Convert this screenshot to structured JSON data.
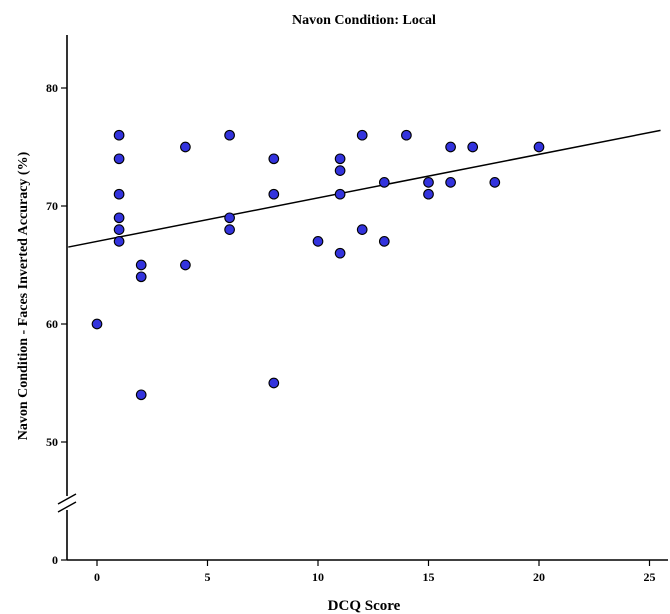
{
  "chart_data": {
    "type": "scatter",
    "title": "Navon Condition: Local",
    "xlabel": "DCQ Score",
    "ylabel": "Navon Condition - Faces Inverted Accuracy (%)",
    "xlim": [
      -1.3,
      25.5
    ],
    "ylim": [
      45,
      84
    ],
    "x_ticks": [
      0,
      5,
      10,
      15,
      20,
      25
    ],
    "x_tick_labels": [
      "0",
      "5",
      "10",
      "15",
      "20",
      "25"
    ],
    "y_ticks": [
      50,
      60,
      70,
      80
    ],
    "y_tick_labels": [
      "50",
      "60",
      "70",
      "80"
    ],
    "y_axis_zero_label": "0",
    "y_axis_break": true,
    "grid": false,
    "legend": "none",
    "marker_color": "#3333dd",
    "marker_edge_color": "#000000",
    "line_color": "#000000",
    "points": [
      {
        "x": 0,
        "y": 60
      },
      {
        "x": 1,
        "y": 76
      },
      {
        "x": 1,
        "y": 74
      },
      {
        "x": 1,
        "y": 71
      },
      {
        "x": 1,
        "y": 69
      },
      {
        "x": 1,
        "y": 68
      },
      {
        "x": 1,
        "y": 67
      },
      {
        "x": 2,
        "y": 65
      },
      {
        "x": 2,
        "y": 64
      },
      {
        "x": 2,
        "y": 54
      },
      {
        "x": 4,
        "y": 75
      },
      {
        "x": 4,
        "y": 65
      },
      {
        "x": 6,
        "y": 76
      },
      {
        "x": 6,
        "y": 69
      },
      {
        "x": 6,
        "y": 68
      },
      {
        "x": 8,
        "y": 74
      },
      {
        "x": 8,
        "y": 71
      },
      {
        "x": 8,
        "y": 55
      },
      {
        "x": 10,
        "y": 67
      },
      {
        "x": 11,
        "y": 74
      },
      {
        "x": 11,
        "y": 73
      },
      {
        "x": 11,
        "y": 71
      },
      {
        "x": 11,
        "y": 66
      },
      {
        "x": 12,
        "y": 76
      },
      {
        "x": 12,
        "y": 68
      },
      {
        "x": 13,
        "y": 72
      },
      {
        "x": 13,
        "y": 67
      },
      {
        "x": 14,
        "y": 76
      },
      {
        "x": 15,
        "y": 72
      },
      {
        "x": 15,
        "y": 71
      },
      {
        "x": 16,
        "y": 75
      },
      {
        "x": 16,
        "y": 72
      },
      {
        "x": 17,
        "y": 75
      },
      {
        "x": 18,
        "y": 72
      },
      {
        "x": 20,
        "y": 75
      }
    ],
    "fit_line": {
      "intercept": 67.0,
      "slope": 0.369,
      "x_range": [
        -1.3,
        25.5
      ]
    }
  }
}
